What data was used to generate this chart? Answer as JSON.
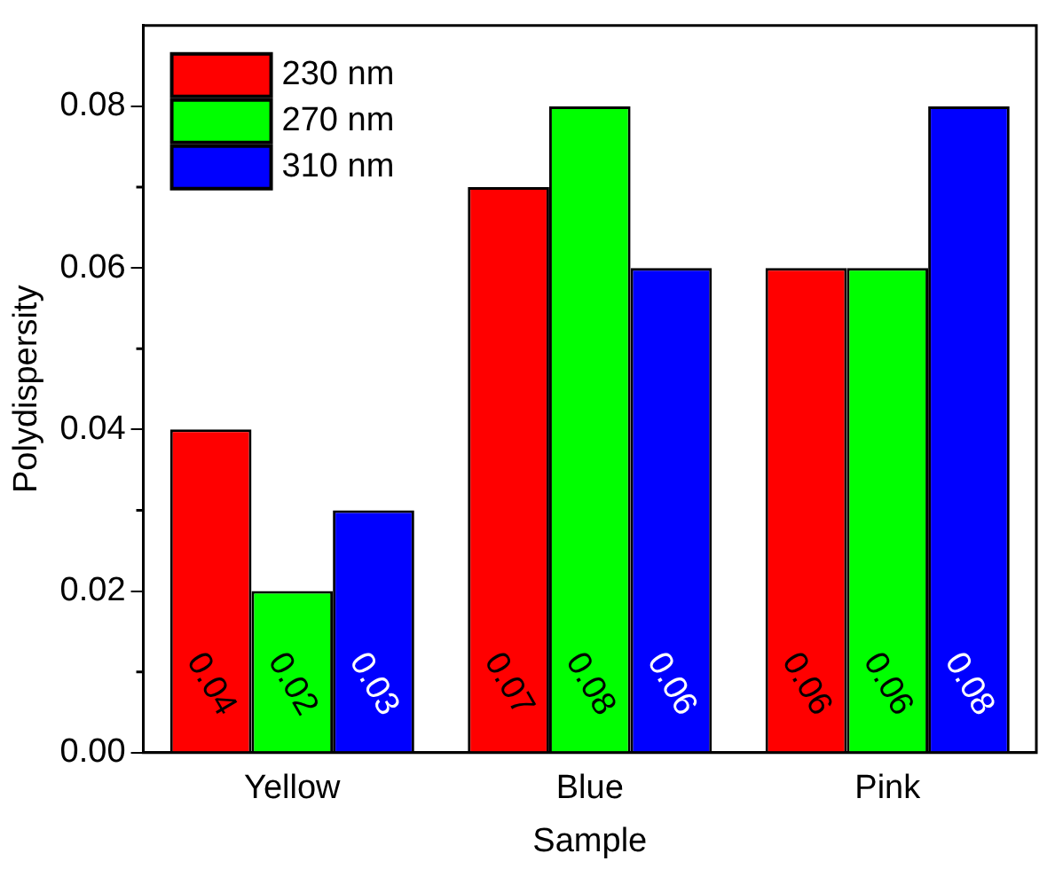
{
  "chart_data": {
    "type": "bar",
    "xlabel": "Sample",
    "ylabel": "Polydispersity",
    "categories": [
      "Yellow",
      "Blue",
      "Pink"
    ],
    "series": [
      {
        "name": "230 nm",
        "color": "#ff0000",
        "values": [
          0.04,
          0.07,
          0.06
        ]
      },
      {
        "name": "270 nm",
        "color": "#00ff00",
        "values": [
          0.02,
          0.08,
          0.06
        ]
      },
      {
        "name": "310 nm",
        "color": "#0000ff",
        "values": [
          0.03,
          0.06,
          0.08
        ]
      }
    ],
    "ylim": [
      0,
      0.09
    ],
    "yticks": [
      "0.00",
      "0.02",
      "0.04",
      "0.06",
      "0.08"
    ],
    "data_labels": true,
    "legend": "top left",
    "grid": false
  }
}
